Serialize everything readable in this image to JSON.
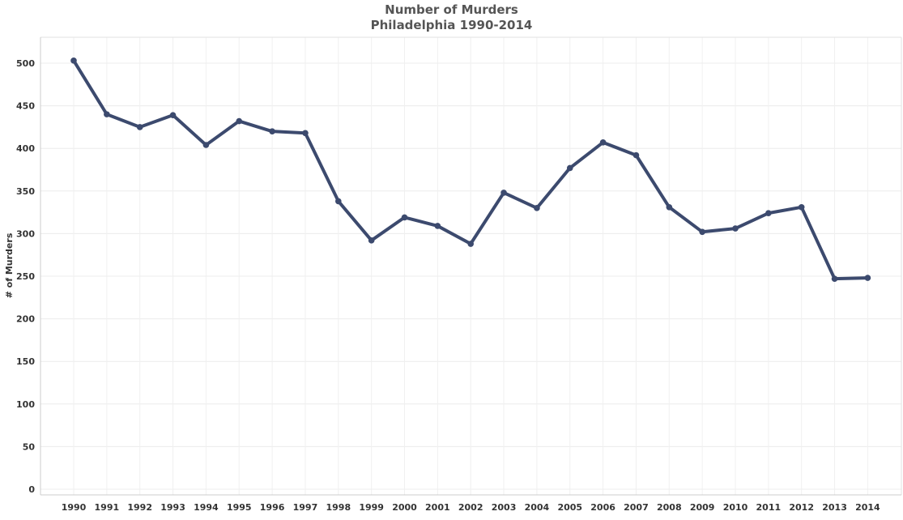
{
  "chart_data": {
    "type": "line",
    "title": "Number of Murders",
    "subtitle": "Philadelphia 1990-2014",
    "xlabel": "",
    "ylabel": "# of Murders",
    "x": [
      "1990",
      "1991",
      "1992",
      "1993",
      "1994",
      "1995",
      "1996",
      "1997",
      "1998",
      "1999",
      "2000",
      "2001",
      "2002",
      "2003",
      "2004",
      "2005",
      "2006",
      "2007",
      "2008",
      "2009",
      "2010",
      "2011",
      "2012",
      "2013",
      "2014"
    ],
    "series": [
      {
        "name": "# of Murders",
        "values": [
          503,
          440,
          425,
          439,
          404,
          432,
          420,
          418,
          338,
          292,
          319,
          309,
          288,
          348,
          330,
          377,
          407,
          392,
          331,
          302,
          306,
          324,
          331,
          247,
          248
        ]
      }
    ],
    "yticks": [
      0,
      50,
      100,
      150,
      200,
      250,
      300,
      350,
      400,
      450,
      500
    ],
    "ylim": [
      0,
      530
    ],
    "grid": true,
    "line_color": "#3c4a6e"
  }
}
